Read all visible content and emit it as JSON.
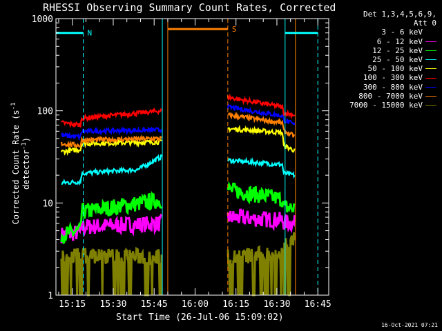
{
  "title": "RHESSI Observing Summary Count Rates, Corrected",
  "timestamp": "16-Oct-2021 07:21",
  "legend_header": [
    "Det 1,3,4,5,6,9,",
    "Att 0"
  ],
  "chart_data": {
    "type": "line",
    "title": "RHESSI Observing Summary Count Rates, Corrected",
    "xlabel": "Start Time (26-Jul-06 15:09:02)",
    "ylabel": "Corrected Count Rate (s⁻¹ detector⁻¹)",
    "ylabel_parts": {
      "main": "Corrected Count Rate (s",
      "sup1": "-1",
      "mid": " detector",
      "sup2": "-1",
      "end": ")"
    },
    "y_scale": "log",
    "ylim": [
      1,
      1000
    ],
    "xlim_minutes": [
      0,
      100
    ],
    "x_tick_labels": [
      {
        "minute": 6,
        "label": "15:15"
      },
      {
        "minute": 21,
        "label": "15:30"
      },
      {
        "minute": 36,
        "label": "15:45"
      },
      {
        "minute": 51,
        "label": "16:00"
      },
      {
        "minute": 66,
        "label": "16:15"
      },
      {
        "minute": 81,
        "label": "16:30"
      },
      {
        "minute": 96,
        "label": "16:45"
      }
    ],
    "y_tick_labels": [
      {
        "value": 1,
        "label": "1"
      },
      {
        "value": 10,
        "label": "10"
      },
      {
        "value": 100,
        "label": "100"
      },
      {
        "value": 1000,
        "label": "1000"
      }
    ],
    "series": [
      {
        "name": "3 - 6 keV",
        "color": "#000000",
        "segments": []
      },
      {
        "name": "6 - 12 keV",
        "color": "#ff00ff",
        "segments": [
          {
            "x": [
              2,
              9,
              9.5,
              38.8
            ],
            "y": [
              4.5,
              4.8,
              5.5,
              6.0
            ]
          },
          {
            "x": [
              63,
              83,
              83.5,
              87.5
            ],
            "y": [
              7.0,
              6.5,
              6.2,
              6.0
            ]
          }
        ]
      },
      {
        "name": "12 - 25 keV",
        "color": "#00ff00",
        "segments": [
          {
            "x": [
              2,
              9,
              9.5,
              38.8
            ],
            "y": [
              4.5,
              5.0,
              8.0,
              10.8
            ]
          },
          {
            "x": [
              63,
              83,
              83.5,
              87.5
            ],
            "y": [
              14,
              11,
              9.0,
              8.8
            ]
          }
        ]
      },
      {
        "name": "25 - 50 keV",
        "color": "#00ffff",
        "segments": [
          {
            "x": [
              2,
              9,
              9.5,
              30,
              38.8
            ],
            "y": [
              16.5,
              17.0,
              21,
              23,
              32
            ]
          },
          {
            "x": [
              63,
              83,
              83.5,
              87.5
            ],
            "y": [
              29,
              26,
              21,
              20
            ]
          }
        ]
      },
      {
        "name": "50 - 100 keV",
        "color": "#ffff00",
        "segments": [
          {
            "x": [
              2,
              9,
              9.5,
              38.8
            ],
            "y": [
              36,
              38,
              44,
              46
            ]
          },
          {
            "x": [
              63,
              83,
              83.5,
              87.5
            ],
            "y": [
              64,
              58,
              42,
              37
            ]
          }
        ]
      },
      {
        "name": "100 - 300 keV",
        "color": "#ff0000",
        "segments": [
          {
            "x": [
              2,
              9,
              9.5,
              38.8
            ],
            "y": [
              74,
              70,
              83,
              100
            ]
          },
          {
            "x": [
              63,
              83,
              83.5,
              87.5
            ],
            "y": [
              140,
              110,
              95,
              90
            ]
          }
        ]
      },
      {
        "name": "300 - 800 keV",
        "color": "#0000ff",
        "segments": [
          {
            "x": [
              2,
              9,
              9.5,
              38.8
            ],
            "y": [
              54,
              52,
              60,
              62
            ]
          },
          {
            "x": [
              63,
              83,
              83.5,
              87.5
            ],
            "y": [
              110,
              88,
              80,
              70
            ]
          }
        ]
      },
      {
        "name": "800 - 7000 keV",
        "color": "#ff8000",
        "segments": [
          {
            "x": [
              2,
              9,
              9.5,
              38.8
            ],
            "y": [
              44,
              42,
              48,
              50
            ]
          },
          {
            "x": [
              63,
              83,
              83.5,
              87.5
            ],
            "y": [
              90,
              74,
              60,
              53
            ]
          }
        ]
      },
      {
        "name": "7000 - 15000 keV",
        "color": "#808000",
        "segments": [
          {
            "x": [
              2,
              38.8
            ],
            "y": [
              2.7,
              2.6
            ]
          },
          {
            "x": [
              63,
              83,
              83.5,
              87.5
            ],
            "y": [
              2.6,
              2.8,
              3.6,
              4.0
            ]
          }
        ]
      }
    ],
    "annotations": [
      {
        "label": "N",
        "color": "#00ffff",
        "x_start": 0,
        "x_end": 10,
        "level": 700
      },
      {
        "label": "S",
        "color": "#ff8000",
        "x_start": 41,
        "x_end": 63,
        "level": 770
      },
      {
        "label": "",
        "color": "#00ffff",
        "x_start": 84,
        "x_end": 96,
        "level": 700
      }
    ],
    "vertical_lines": [
      {
        "x": 10,
        "color": "#00ffff",
        "style": "dashed"
      },
      {
        "x": 39,
        "color": "#00ffff",
        "style": "solid"
      },
      {
        "x": 41,
        "color": "#ff8000",
        "style": "solid"
      },
      {
        "x": 63,
        "color": "#ff8000",
        "style": "dashed"
      },
      {
        "x": 84,
        "color": "#00ffff",
        "style": "solid"
      },
      {
        "x": 87.8,
        "color": "#ff8000",
        "style": "solid"
      },
      {
        "x": 96,
        "color": "#00ffff",
        "style": "dashed"
      }
    ]
  }
}
